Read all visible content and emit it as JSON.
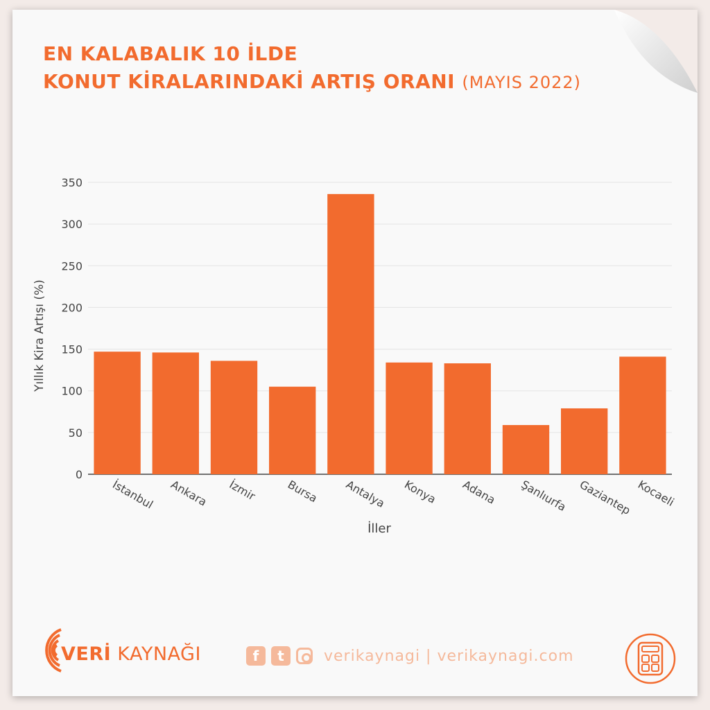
{
  "header": {
    "title_line1": "EN KALABALIK 10 İLDE",
    "title_line2": "KONUT KİRALARINDAKİ ARTIŞ ORANI",
    "title_suffix": "(MAYIS 2022)"
  },
  "chart_data": {
    "type": "bar",
    "title": "EN KALABALIK 10 İLDE KONUT KİRALARINDAKİ ARTIŞ ORANI (MAYIS 2022)",
    "xlabel": "İller",
    "ylabel": "Yıllık Kira Artışı (%)",
    "categories": [
      "İstanbul",
      "Ankara",
      "İzmir",
      "Bursa",
      "Antalya",
      "Konya",
      "Adana",
      "Şanlıurfa",
      "Gaziantep",
      "Kocaeli"
    ],
    "values": [
      147,
      146,
      136,
      105,
      336,
      134,
      133,
      59,
      79,
      141
    ],
    "ylim": [
      0,
      350
    ],
    "yticks": [
      0,
      50,
      100,
      150,
      200,
      250,
      300,
      350
    ],
    "grid": true,
    "bar_color": "#f26b2e"
  },
  "footer": {
    "brand_bold": "VERİ",
    "brand_rest": " KAYNAĞI",
    "facebook_icon": "facebook-icon",
    "twitter_icon": "twitter-icon",
    "instagram_icon": "instagram-icon",
    "handle": "verikaynagi | verikaynagi.com",
    "calculator_icon": "calculator-icon"
  },
  "colors": {
    "accent": "#f26b2e",
    "muted_accent": "#f5b99b",
    "page_bg": "#f3ebe8",
    "card_bg": "#f9f9f9"
  }
}
